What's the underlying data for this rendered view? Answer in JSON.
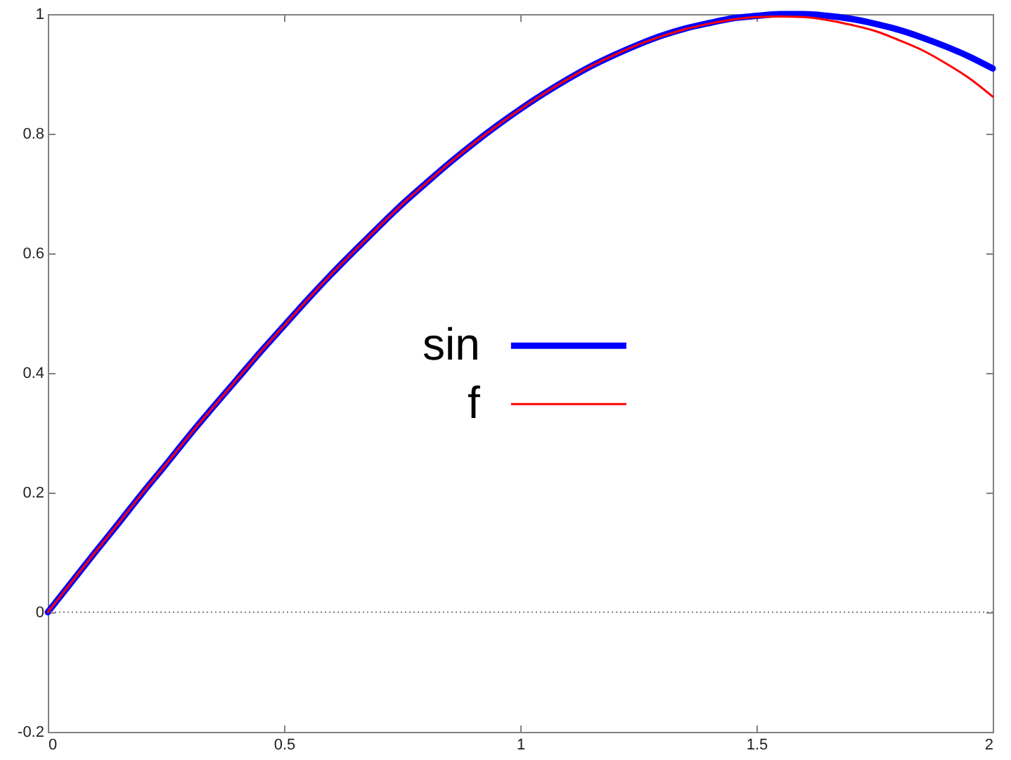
{
  "chart_data": {
    "type": "line",
    "x": [
      0,
      0.05,
      0.1,
      0.15,
      0.2,
      0.25,
      0.3,
      0.35,
      0.4,
      0.45,
      0.5,
      0.55,
      0.6,
      0.65,
      0.7,
      0.75,
      0.8,
      0.85,
      0.9,
      0.95,
      1,
      1.05,
      1.1,
      1.15,
      1.2,
      1.25,
      1.3,
      1.35,
      1.4,
      1.45,
      1.5,
      1.55,
      1.6,
      1.65,
      1.7,
      1.75,
      1.8,
      1.85,
      1.9,
      1.95,
      2
    ],
    "series": [
      {
        "name": "sin",
        "color": "#0000ff",
        "values": [
          0,
          0.05,
          0.1,
          0.149,
          0.199,
          0.247,
          0.296,
          0.343,
          0.389,
          0.435,
          0.479,
          0.523,
          0.565,
          0.605,
          0.644,
          0.682,
          0.717,
          0.751,
          0.783,
          0.813,
          0.841,
          0.867,
          0.891,
          0.913,
          0.932,
          0.949,
          0.964,
          0.976,
          0.985,
          0.993,
          0.997,
          1,
          1,
          0.997,
          0.992,
          0.984,
          0.974,
          0.961,
          0.946,
          0.929,
          0.909
        ]
      },
      {
        "name": "f",
        "color": "#ff0000",
        "values": [
          0,
          0.05,
          0.1,
          0.149,
          0.199,
          0.247,
          0.296,
          0.343,
          0.389,
          0.435,
          0.479,
          0.523,
          0.565,
          0.605,
          0.644,
          0.682,
          0.717,
          0.751,
          0.783,
          0.813,
          0.841,
          0.867,
          0.891,
          0.913,
          0.932,
          0.949,
          0.963,
          0.975,
          0.984,
          0.991,
          0.995,
          0.996,
          0.995,
          0.99,
          0.982,
          0.972,
          0.957,
          0.94,
          0.918,
          0.893,
          0.862
        ]
      }
    ],
    "xlim": [
      0,
      2
    ],
    "xticks": [
      0,
      0.5,
      1,
      1.5,
      2
    ],
    "ylim": [
      -0.2,
      1
    ],
    "yticks": [
      -0.2,
      0,
      0.2,
      0.4,
      0.6,
      0.8,
      1
    ],
    "ref_lines": [
      {
        "axis": "y",
        "value": 0,
        "color": "#808080",
        "line_style": "dotted"
      }
    ],
    "legend": "center"
  }
}
